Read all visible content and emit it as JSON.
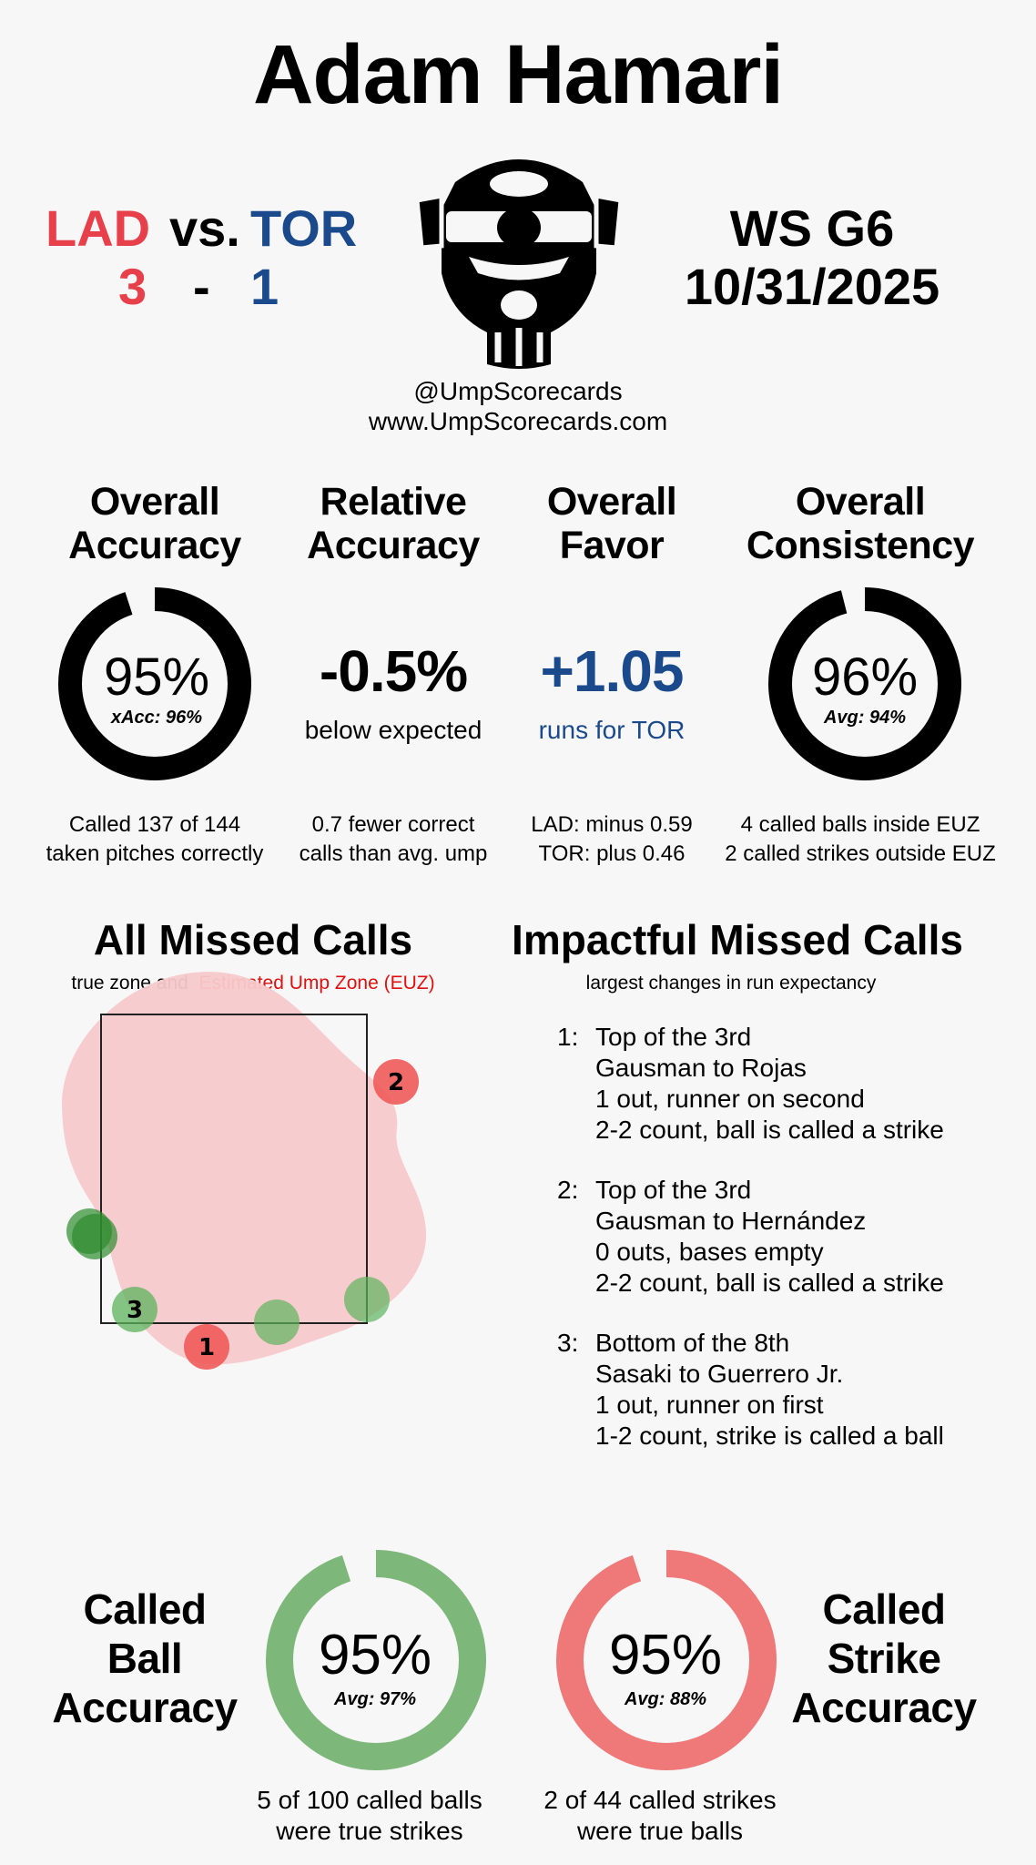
{
  "header": {
    "umpire": "Adam Hamari",
    "away_team": "LAD",
    "vs": "vs.",
    "home_team": "TOR",
    "away_score": "3",
    "dash": "-",
    "home_score": "1",
    "series": "WS  G6",
    "date": "10/31/2025",
    "handle": "@UmpScorecards",
    "website": "www.UmpScorecards.com",
    "icon": "umpire-mask-icon"
  },
  "colors": {
    "lad": "#e8404a",
    "tor": "#1a4a8c",
    "ball_ring": "#7db87a",
    "strike_ring": "#ef7878",
    "euz": "#f7c9cb"
  },
  "stats": {
    "accuracy": {
      "title1": "Overall",
      "title2": "Accuracy",
      "value": "95%",
      "sub": "xAcc: 96%",
      "fill_percent": 95,
      "note1": "Called 137 of 144",
      "note2": "taken pitches correctly"
    },
    "relative": {
      "title1": "Relative",
      "title2": "Accuracy",
      "value": "-0.5%",
      "sub": "below expected",
      "note1": "0.7 fewer correct",
      "note2": "calls than avg. ump"
    },
    "favor": {
      "title1": "Overall",
      "title2": "Favor",
      "value": "+1.05",
      "sub": "runs for TOR",
      "note1": "LAD: minus 0.59",
      "note2": "TOR: plus 0.46"
    },
    "consistency": {
      "title1": "Overall",
      "title2": "Consistency",
      "value": "96%",
      "sub": "Avg: 94%",
      "fill_percent": 96,
      "note1": "4 called balls inside EUZ",
      "note2": "2 called strikes outside EUZ"
    }
  },
  "missed": {
    "title": "All Missed Calls",
    "sub_black": "true zone and",
    "sub_red": "Estimated Ump Zone (EUZ)",
    "labels": [
      "1",
      "2",
      "3"
    ]
  },
  "impactful": {
    "title": "Impactful Missed Calls",
    "sub": "largest changes in run expectancy",
    "items": [
      {
        "num": "1:",
        "lines": [
          "Top of the 3rd",
          "Gausman to Rojas",
          "1 out, runner on second",
          "2-2 count, ball is called a strike"
        ]
      },
      {
        "num": "2:",
        "lines": [
          "Top of the 3rd",
          "Gausman to Hernández",
          "0 outs, bases empty",
          "2-2 count, ball is called a strike"
        ]
      },
      {
        "num": "3:",
        "lines": [
          "Bottom of the 8th",
          "Sasaki to Guerrero Jr.",
          "1 out, runner on first",
          "1-2 count, strike is called a ball"
        ]
      }
    ]
  },
  "ball_acc": {
    "t1": "Called",
    "t2": "Ball",
    "t3": "Accuracy",
    "value": "95%",
    "sub": "Avg: 97%",
    "fill_percent": 95,
    "note1": "5 of 100 called balls",
    "note2": "were true strikes"
  },
  "strike_acc": {
    "t1": "Called",
    "t2": "Strike",
    "t3": "Accuracy",
    "value": "95%",
    "sub": "Avg: 88%",
    "fill_percent": 95,
    "note1": "2 of 44 called strikes",
    "note2": "were true balls"
  }
}
